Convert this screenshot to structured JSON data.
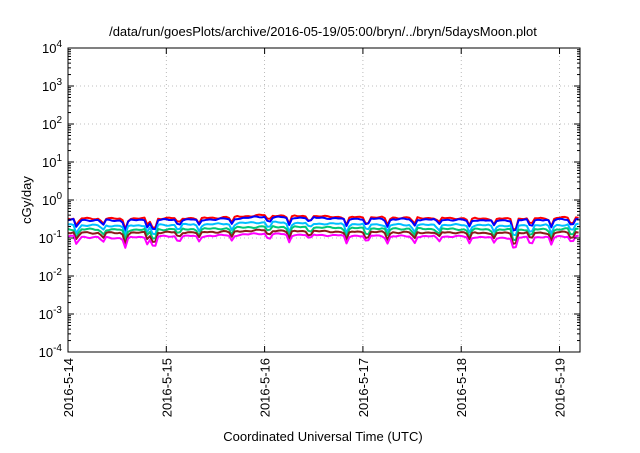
{
  "chart_data": {
    "type": "line",
    "title": "/data/run/goesPlots/archive/2016-05-19/05:00/bryn/../bryn/5daysMoon.plot",
    "xlabel": "Coordinated Universal Time (UTC)",
    "ylabel": "cGy/day",
    "yscale": "log",
    "ylim": [
      0.0001,
      10000
    ],
    "xlim": [
      "2016-05-14T00:00",
      "2016-05-19T05:00"
    ],
    "grid": true,
    "legend": "none",
    "x_ticks": [
      "2016-5-14",
      "2016-5-15",
      "2016-5-16",
      "2016-5-17",
      "2016-5-18",
      "2016-5-19"
    ],
    "y_ticks": [
      {
        "value": 0.0001,
        "base": "10",
        "exp": "-4"
      },
      {
        "value": 0.001,
        "base": "10",
        "exp": "-3"
      },
      {
        "value": 0.01,
        "base": "10",
        "exp": "-2"
      },
      {
        "value": 0.1,
        "base": "10",
        "exp": "-1"
      },
      {
        "value": 1,
        "base": "10",
        "exp": "0"
      },
      {
        "value": 10,
        "base": "10",
        "exp": "1"
      },
      {
        "value": 100,
        "base": "10",
        "exp": "2"
      },
      {
        "value": 1000,
        "base": "10",
        "exp": "3"
      },
      {
        "value": 10000,
        "base": "10",
        "exp": "4"
      }
    ],
    "series": [
      {
        "color": "#ff0000",
        "x": [
          "2016-05-14T00:00",
          "2016-05-14T12:00",
          "2016-05-15T00:00",
          "2016-05-15T12:00",
          "2016-05-16T00:00",
          "2016-05-16T12:00",
          "2016-05-17T00:00",
          "2016-05-17T12:00",
          "2016-05-18T00:00",
          "2016-05-18T12:00",
          "2016-05-19T00:00",
          "2016-05-19T05:00"
        ],
        "values": [
          0.33,
          0.32,
          0.33,
          0.34,
          0.4,
          0.37,
          0.35,
          0.34,
          0.33,
          0.32,
          0.34,
          0.35
        ]
      },
      {
        "color": "#0000ff",
        "x": [
          "2016-05-14T00:00",
          "2016-05-14T12:00",
          "2016-05-15T00:00",
          "2016-05-15T12:00",
          "2016-05-16T00:00",
          "2016-05-16T12:00",
          "2016-05-17T00:00",
          "2016-05-17T12:00",
          "2016-05-18T00:00",
          "2016-05-18T12:00",
          "2016-05-19T00:00",
          "2016-05-19T05:00"
        ],
        "values": [
          0.3,
          0.29,
          0.3,
          0.31,
          0.36,
          0.34,
          0.32,
          0.31,
          0.3,
          0.29,
          0.31,
          0.32
        ]
      },
      {
        "color": "#00bfff",
        "x": [
          "2016-05-14T00:00",
          "2016-05-14T12:00",
          "2016-05-15T00:00",
          "2016-05-15T12:00",
          "2016-05-16T00:00",
          "2016-05-16T12:00",
          "2016-05-17T00:00",
          "2016-05-17T12:00",
          "2016-05-18T00:00",
          "2016-05-18T12:00",
          "2016-05-19T00:00",
          "2016-05-19T05:00"
        ],
        "values": [
          0.22,
          0.21,
          0.22,
          0.23,
          0.26,
          0.24,
          0.23,
          0.22,
          0.22,
          0.21,
          0.22,
          0.23
        ]
      },
      {
        "color": "#00c878",
        "x": [
          "2016-05-14T00:00",
          "2016-05-14T12:00",
          "2016-05-15T00:00",
          "2016-05-15T12:00",
          "2016-05-16T00:00",
          "2016-05-16T12:00",
          "2016-05-17T00:00",
          "2016-05-17T12:00",
          "2016-05-18T00:00",
          "2016-05-18T12:00",
          "2016-05-19T00:00",
          "2016-05-19T05:00"
        ],
        "values": [
          0.17,
          0.165,
          0.17,
          0.175,
          0.2,
          0.19,
          0.18,
          0.175,
          0.17,
          0.165,
          0.17,
          0.175
        ]
      },
      {
        "color": "#8b1a1a",
        "x": [
          "2016-05-14T00:00",
          "2016-05-14T12:00",
          "2016-05-15T00:00",
          "2016-05-15T12:00",
          "2016-05-16T00:00",
          "2016-05-16T12:00",
          "2016-05-17T00:00",
          "2016-05-17T12:00",
          "2016-05-18T00:00",
          "2016-05-18T12:00",
          "2016-05-19T00:00",
          "2016-05-19T05:00"
        ],
        "values": [
          0.14,
          0.135,
          0.14,
          0.145,
          0.16,
          0.15,
          0.145,
          0.14,
          0.14,
          0.135,
          0.14,
          0.145
        ]
      },
      {
        "color": "#ff00ff",
        "x": [
          "2016-05-14T00:00",
          "2016-05-14T12:00",
          "2016-05-15T00:00",
          "2016-05-15T12:00",
          "2016-05-16T00:00",
          "2016-05-16T12:00",
          "2016-05-17T00:00",
          "2016-05-17T12:00",
          "2016-05-18T00:00",
          "2016-05-18T12:00",
          "2016-05-19T00:00",
          "2016-05-19T05:00"
        ],
        "values": [
          0.11,
          0.1,
          0.11,
          0.115,
          0.13,
          0.12,
          0.115,
          0.11,
          0.11,
          0.1,
          0.11,
          0.115
        ]
      }
    ],
    "dips": [
      {
        "x": "2016-05-14T02:10",
        "depth": 0.55
      },
      {
        "x": "2016-05-14T08:30",
        "depth": 0.7
      },
      {
        "x": "2016-05-14T14:00",
        "depth": 0.55
      },
      {
        "x": "2016-05-14T19:30",
        "depth": 0.6
      },
      {
        "x": "2016-05-14T21:00",
        "depth": 0.3
      },
      {
        "x": "2016-05-15T03:00",
        "depth": 0.65
      },
      {
        "x": "2016-05-15T08:00",
        "depth": 0.7
      },
      {
        "x": "2016-05-15T16:00",
        "depth": 0.7
      },
      {
        "x": "2016-05-16T01:00",
        "depth": 0.65
      },
      {
        "x": "2016-05-16T06:00",
        "depth": 0.6
      },
      {
        "x": "2016-05-16T11:00",
        "depth": 0.7
      },
      {
        "x": "2016-05-16T20:00",
        "depth": 0.6
      },
      {
        "x": "2016-05-17T01:00",
        "depth": 0.55
      },
      {
        "x": "2016-05-17T06:00",
        "depth": 0.65
      },
      {
        "x": "2016-05-17T12:30",
        "depth": 0.6
      },
      {
        "x": "2016-05-17T18:30",
        "depth": 0.7
      },
      {
        "x": "2016-05-18T02:00",
        "depth": 0.65
      },
      {
        "x": "2016-05-18T08:00",
        "depth": 0.7
      },
      {
        "x": "2016-05-18T13:00",
        "depth": 0.25
      },
      {
        "x": "2016-05-18T17:00",
        "depth": 0.55
      },
      {
        "x": "2016-05-18T22:00",
        "depth": 0.6
      },
      {
        "x": "2016-05-19T03:00",
        "depth": 0.55
      }
    ]
  }
}
